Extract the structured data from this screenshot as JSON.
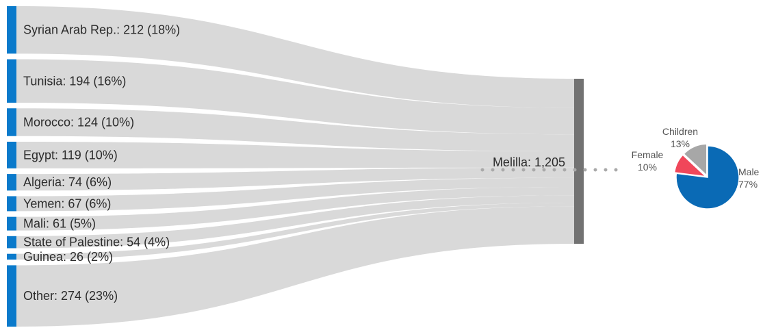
{
  "chart_data": {
    "type": "sankey",
    "target": {
      "label": "Melilla: 1,205",
      "name": "Melilla",
      "value": 1205
    },
    "sources": [
      {
        "name": "Syrian Arab Rep.",
        "value": 212,
        "percent": 18,
        "label": "Syrian Arab Rep.: 212 (18%)"
      },
      {
        "name": "Tunisia",
        "value": 194,
        "percent": 16,
        "label": "Tunisia: 194 (16%)"
      },
      {
        "name": "Morocco",
        "value": 124,
        "percent": 10,
        "label": "Morocco: 124 (10%)"
      },
      {
        "name": "Egypt",
        "value": 119,
        "percent": 10,
        "label": "Egypt: 119 (10%)"
      },
      {
        "name": "Algeria",
        "value": 74,
        "percent": 6,
        "label": "Algeria: 74 (6%)"
      },
      {
        "name": "Yemen",
        "value": 67,
        "percent": 6,
        "label": "Yemen: 67 (6%)"
      },
      {
        "name": "Mali",
        "value": 61,
        "percent": 5,
        "label": "Mali: 61 (5%)"
      },
      {
        "name": "State of Palestine",
        "value": 54,
        "percent": 4,
        "label": "State of Palestine: 54 (4%)"
      },
      {
        "name": "Guinea",
        "value": 26,
        "percent": 2,
        "label": "Guinea: 26 (2%)"
      },
      {
        "name": "Other",
        "value": 274,
        "percent": 23,
        "label": "Other: 274 (23%)"
      }
    ],
    "pie": {
      "type": "pie",
      "slices": [
        {
          "name": "Male",
          "percent": 77,
          "label": "Male",
          "pct_label": "77%",
          "color": "#0a6ab5"
        },
        {
          "name": "Female",
          "percent": 10,
          "label": "Female",
          "pct_label": "10%",
          "color": "#f0475a"
        },
        {
          "name": "Children",
          "percent": 13,
          "label": "Children",
          "pct_label": "13%",
          "color": "#a7a7a7"
        }
      ]
    },
    "colors": {
      "source_node": "#0a7acb",
      "flow": "#d9d9d9",
      "target_node": "#727272",
      "connector": "#a9a9a9"
    }
  }
}
